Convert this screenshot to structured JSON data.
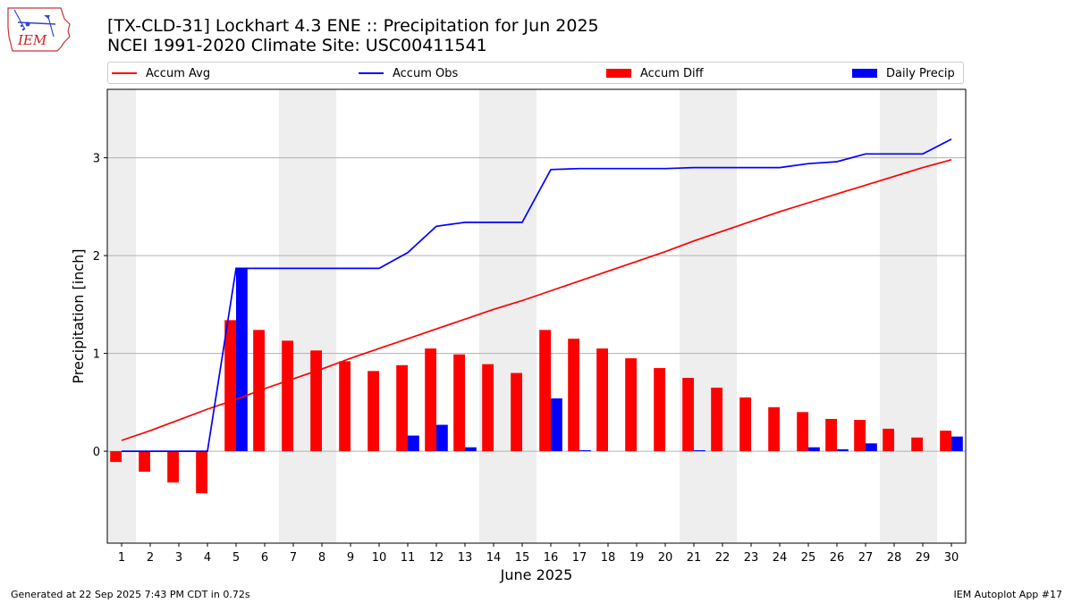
{
  "header": {
    "title_line1": "[TX-CLD-31] Lockhart 4.3 ENE :: Precipitation for Jun 2025",
    "title_line2": "NCEI 1991-2020 Climate Site: USC00411541",
    "logo_text": "IEM"
  },
  "legend": {
    "items": [
      {
        "label": "Accum Avg",
        "kind": "line",
        "color": "#ff0000"
      },
      {
        "label": "Accum Obs",
        "kind": "line",
        "color": "#0000ff"
      },
      {
        "label": "Accum Diff",
        "kind": "bar",
        "color": "#ff0000"
      },
      {
        "label": "Daily Precip",
        "kind": "bar",
        "color": "#0000ff"
      }
    ]
  },
  "footer": {
    "left": "Generated at 22 Sep 2025 7:43 PM CDT in 0.72s",
    "right": "IEM Autoplot App #17"
  },
  "chart_data": {
    "type": "bar",
    "xlabel": "June 2025",
    "ylabel": "Precipitation [inch]",
    "days": [
      1,
      2,
      3,
      4,
      5,
      6,
      7,
      8,
      9,
      10,
      11,
      12,
      13,
      14,
      15,
      16,
      17,
      18,
      19,
      20,
      21,
      22,
      23,
      24,
      25,
      26,
      27,
      28,
      29,
      30
    ],
    "xlim": [
      0.5,
      30.5
    ],
    "ylim": [
      -0.94,
      3.7
    ],
    "yticks": [
      0,
      1,
      2,
      3
    ],
    "grid": "horizontal",
    "legend_position": "top",
    "weekend_shading": [
      [
        0.5,
        1.5
      ],
      [
        6.5,
        8.5
      ],
      [
        13.5,
        15.5
      ],
      [
        20.5,
        22.5
      ],
      [
        27.5,
        29.5
      ]
    ],
    "series": [
      {
        "name": "Accum Avg",
        "type": "line",
        "color": "#ff0000",
        "values": [
          0.11,
          0.21,
          0.32,
          0.43,
          0.53,
          0.64,
          0.74,
          0.84,
          0.95,
          1.05,
          1.15,
          1.25,
          1.35,
          1.45,
          1.54,
          1.64,
          1.74,
          1.84,
          1.94,
          2.04,
          2.15,
          2.25,
          2.35,
          2.45,
          2.54,
          2.63,
          2.72,
          2.81,
          2.9,
          2.98
        ]
      },
      {
        "name": "Accum Obs",
        "type": "line",
        "color": "#0000ff",
        "values": [
          0.0,
          0.0,
          0.0,
          0.0,
          1.87,
          1.87,
          1.87,
          1.87,
          1.87,
          1.87,
          2.03,
          2.3,
          2.34,
          2.34,
          2.34,
          2.88,
          2.89,
          2.89,
          2.89,
          2.89,
          2.9,
          2.9,
          2.9,
          2.9,
          2.94,
          2.96,
          3.04,
          3.04,
          3.04,
          3.19
        ]
      },
      {
        "name": "Accum Diff",
        "type": "bar",
        "color": "#ff0000",
        "values": [
          -0.11,
          -0.21,
          -0.32,
          -0.43,
          1.34,
          1.24,
          1.13,
          1.03,
          0.92,
          0.82,
          0.88,
          1.05,
          0.99,
          0.89,
          0.8,
          1.24,
          1.15,
          1.05,
          0.95,
          0.85,
          0.75,
          0.65,
          0.55,
          0.45,
          0.4,
          0.33,
          0.32,
          0.23,
          0.14,
          0.21
        ]
      },
      {
        "name": "Daily Precip",
        "type": "bar",
        "color": "#0000ff",
        "values": [
          0.0,
          0.0,
          0.0,
          0.0,
          1.87,
          0.0,
          0.0,
          0.0,
          0.0,
          0.0,
          0.16,
          0.27,
          0.04,
          0.0,
          0.0,
          0.54,
          0.01,
          0.0,
          0.0,
          0.0,
          0.01,
          0.0,
          0.0,
          0.0,
          0.04,
          0.02,
          0.08,
          0.0,
          0.0,
          0.15
        ]
      }
    ]
  }
}
